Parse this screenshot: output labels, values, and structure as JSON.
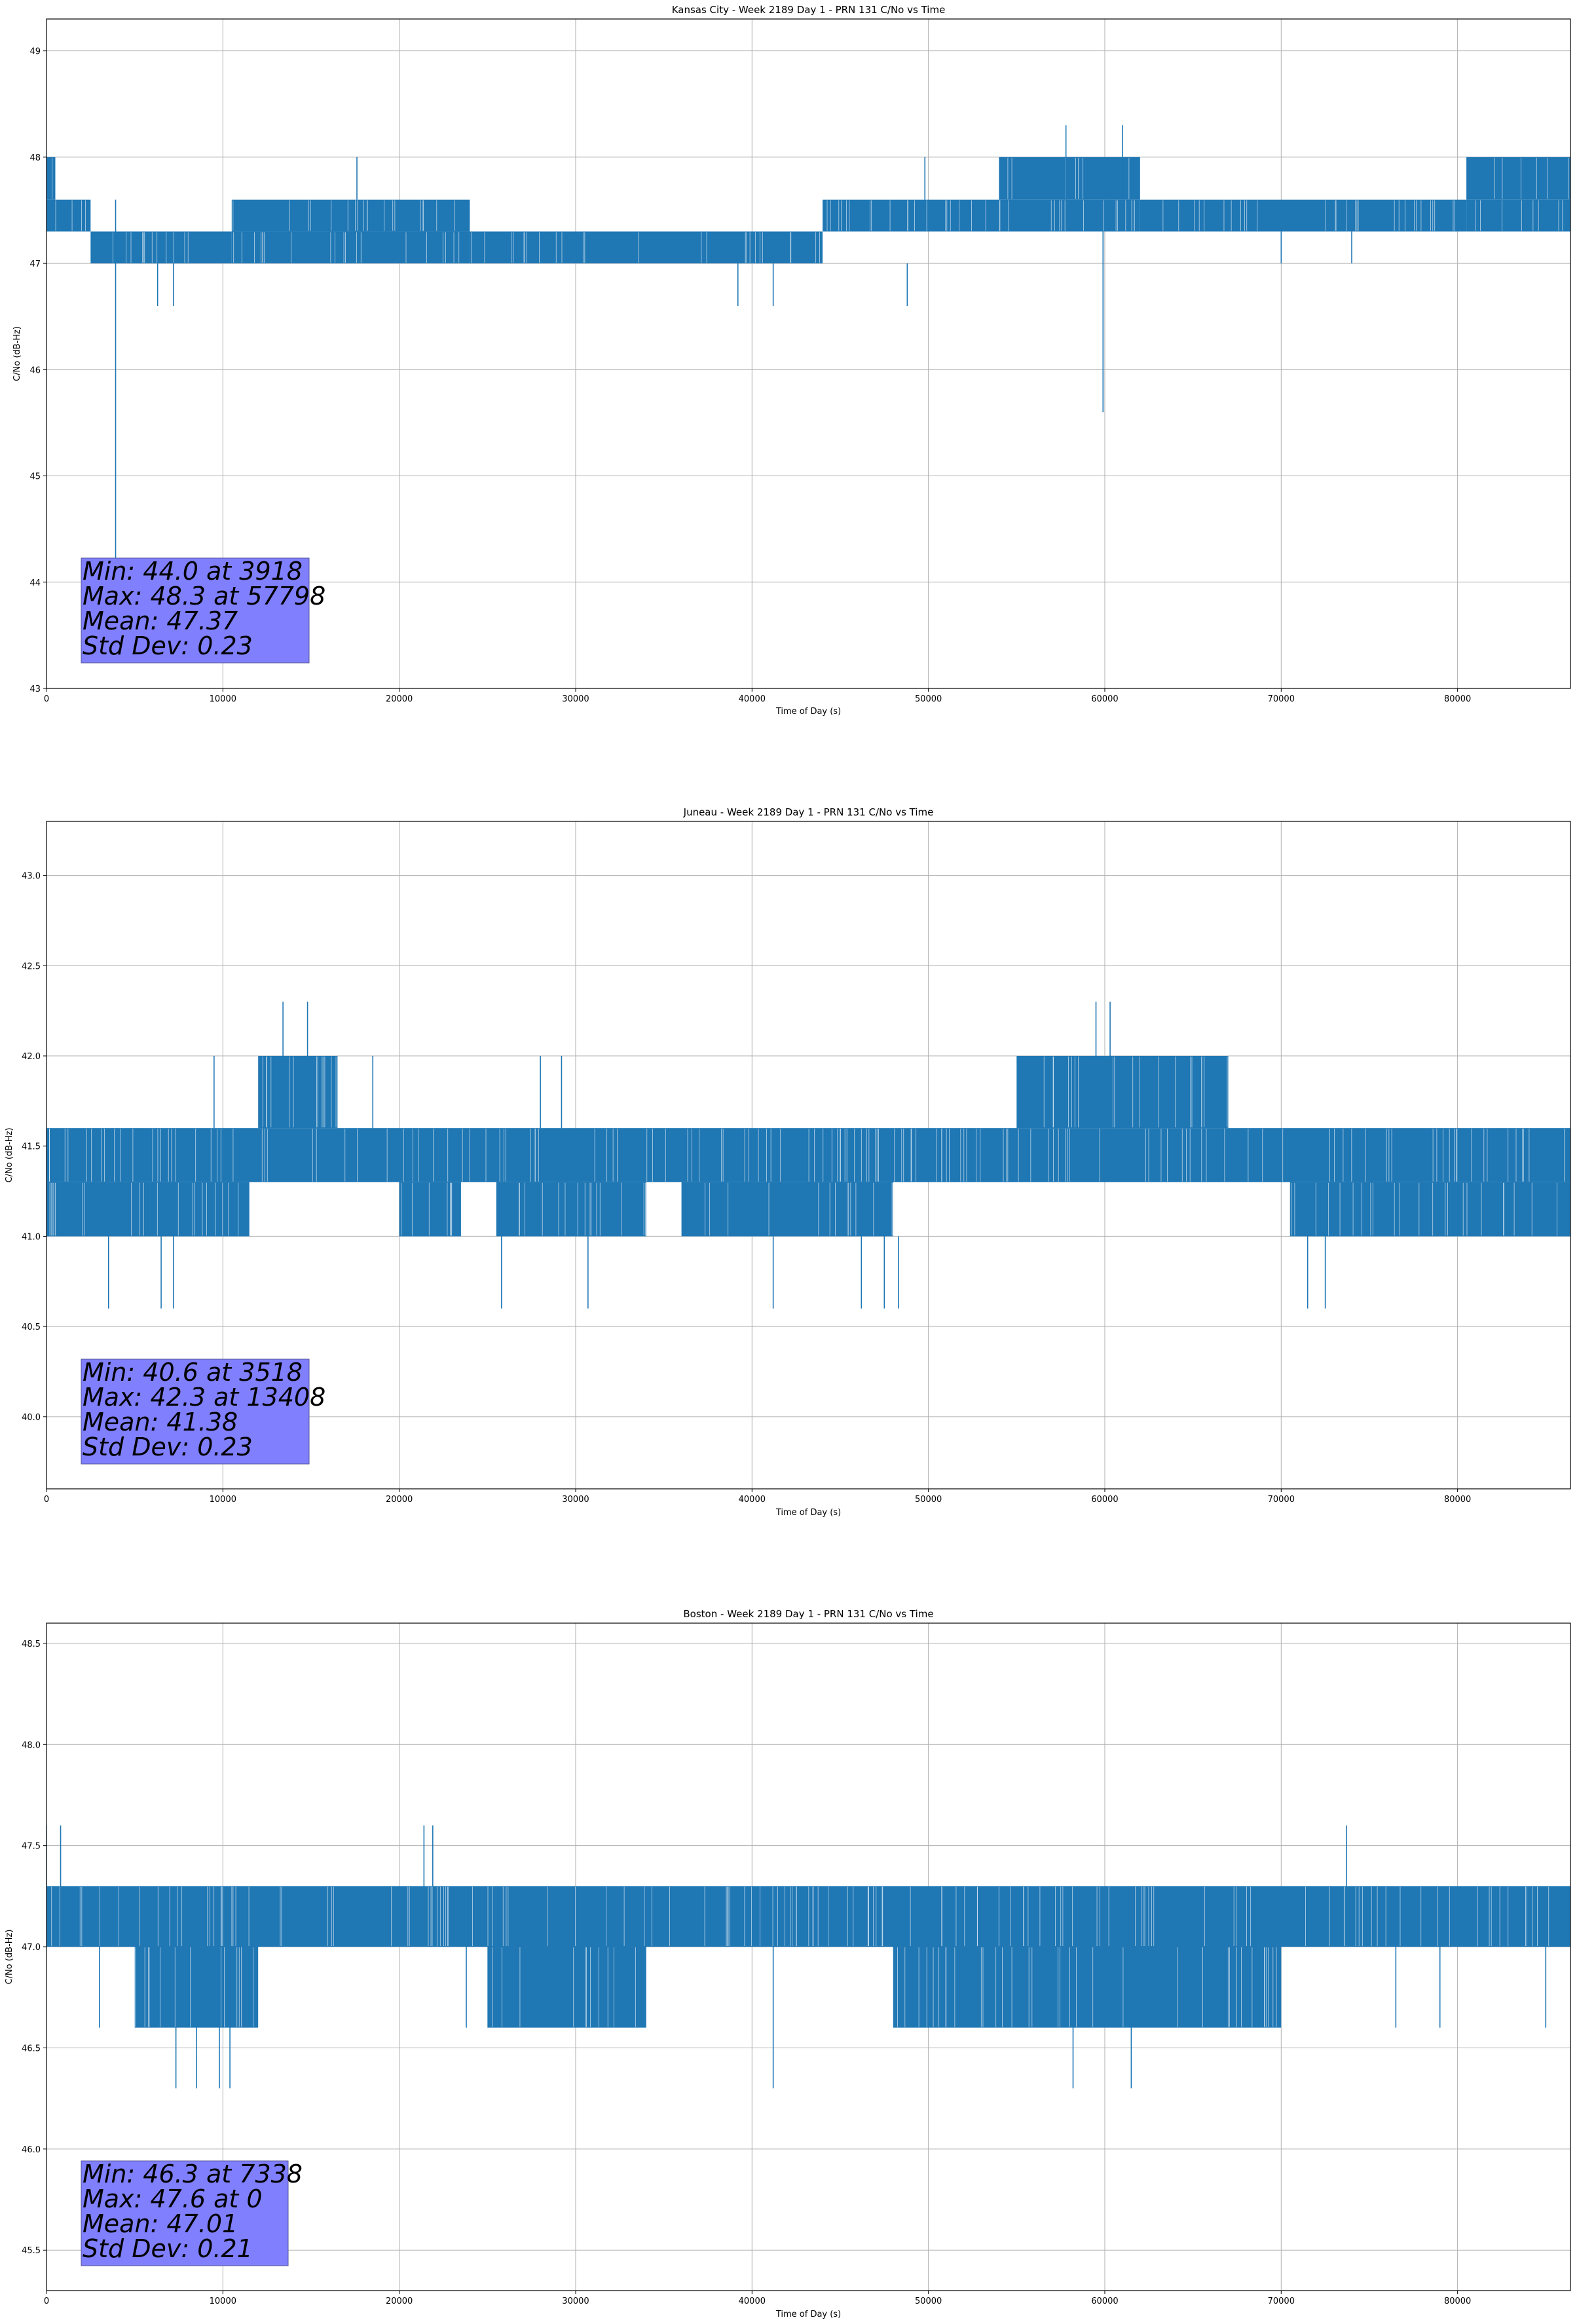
{
  "chart_data": [
    {
      "type": "line",
      "title": "Kansas City - Week 2189 Day 1 - PRN 131 C/No vs Time",
      "xlabel": "Time of Day (s)",
      "ylabel": "C/No (dB-Hz)",
      "xlim": [
        0,
        86400
      ],
      "ylim": [
        43,
        49.3
      ],
      "xticks": [
        0,
        10000,
        20000,
        30000,
        40000,
        50000,
        60000,
        70000,
        80000
      ],
      "yticks": [
        43,
        44,
        45,
        46,
        47,
        48,
        49
      ],
      "ytick_labels": [
        "43",
        "44",
        "45",
        "46",
        "47",
        "48",
        "49"
      ],
      "grid": true,
      "series": [
        {
          "name": "PRN 131 C/No",
          "color": "#1f77b4"
        }
      ],
      "bands": [
        {
          "x0": 0,
          "x1": 500,
          "lo": 47.6,
          "hi": 48.0
        },
        {
          "x0": 0,
          "x1": 2500,
          "lo": 47.3,
          "hi": 47.6
        },
        {
          "x0": 2500,
          "x1": 10500,
          "lo": 47.0,
          "hi": 47.3
        },
        {
          "x0": 10500,
          "x1": 24000,
          "lo": 47.3,
          "hi": 47.6
        },
        {
          "x0": 10500,
          "x1": 24000,
          "lo": 47.0,
          "hi": 47.3
        },
        {
          "x0": 24000,
          "x1": 44000,
          "lo": 47.0,
          "hi": 47.3
        },
        {
          "x0": 44000,
          "x1": 54000,
          "lo": 47.3,
          "hi": 47.6
        },
        {
          "x0": 54000,
          "x1": 62000,
          "lo": 47.6,
          "hi": 48.0
        },
        {
          "x0": 54000,
          "x1": 62000,
          "lo": 47.3,
          "hi": 47.6
        },
        {
          "x0": 62000,
          "x1": 80500,
          "lo": 47.3,
          "hi": 47.6
        },
        {
          "x0": 80500,
          "x1": 86400,
          "lo": 47.6,
          "hi": 48.0
        },
        {
          "x0": 80500,
          "x1": 86400,
          "lo": 47.3,
          "hi": 47.6
        }
      ],
      "spikes": [
        {
          "x": 3918,
          "lo": 44.0,
          "hi": 47.6
        },
        {
          "x": 6300,
          "lo": 46.6,
          "hi": 47.0
        },
        {
          "x": 7200,
          "lo": 46.6,
          "hi": 47.0
        },
        {
          "x": 17600,
          "lo": 47.6,
          "hi": 48.0
        },
        {
          "x": 39200,
          "lo": 46.6,
          "hi": 47.0
        },
        {
          "x": 41200,
          "lo": 46.6,
          "hi": 47.0
        },
        {
          "x": 48800,
          "lo": 46.6,
          "hi": 47.0
        },
        {
          "x": 49800,
          "lo": 47.6,
          "hi": 48.0
        },
        {
          "x": 57798,
          "lo": 47.6,
          "hi": 48.3
        },
        {
          "x": 59900,
          "lo": 45.6,
          "hi": 47.3
        },
        {
          "x": 61000,
          "lo": 47.6,
          "hi": 48.3
        },
        {
          "x": 70000,
          "lo": 47.0,
          "hi": 47.3
        },
        {
          "x": 74000,
          "lo": 47.0,
          "hi": 47.3
        }
      ],
      "stats": [
        "Min: 44.0 at 3918",
        "Max: 48.3 at 57798",
        "Mean: 47.37",
        "Std Dev: 0.23"
      ]
    },
    {
      "type": "line",
      "title": "Juneau - Week 2189 Day 1 - PRN 131 C/No vs Time",
      "xlabel": "Time of Day (s)",
      "ylabel": "C/No (dB-Hz)",
      "xlim": [
        0,
        86400
      ],
      "ylim": [
        39.6,
        43.3
      ],
      "xticks": [
        0,
        10000,
        20000,
        30000,
        40000,
        50000,
        60000,
        70000,
        80000
      ],
      "yticks": [
        40.0,
        40.5,
        41.0,
        41.5,
        42.0,
        42.5,
        43.0
      ],
      "ytick_labels": [
        "40.0",
        "40.5",
        "41.0",
        "41.5",
        "42.0",
        "42.5",
        "43.0"
      ],
      "grid": true,
      "series": [
        {
          "name": "PRN 131 C/No",
          "color": "#1f77b4"
        }
      ],
      "bands": [
        {
          "x0": 0,
          "x1": 86400,
          "lo": 41.3,
          "hi": 41.6
        },
        {
          "x0": 0,
          "x1": 11500,
          "lo": 41.0,
          "hi": 41.3
        },
        {
          "x0": 20000,
          "x1": 23500,
          "lo": 41.0,
          "hi": 41.3
        },
        {
          "x0": 25500,
          "x1": 34000,
          "lo": 41.0,
          "hi": 41.3
        },
        {
          "x0": 36000,
          "x1": 48000,
          "lo": 41.0,
          "hi": 41.3
        },
        {
          "x0": 70500,
          "x1": 86400,
          "lo": 41.0,
          "hi": 41.3
        },
        {
          "x0": 12000,
          "x1": 16500,
          "lo": 41.6,
          "hi": 42.0
        },
        {
          "x0": 55000,
          "x1": 67000,
          "lo": 41.6,
          "hi": 42.0
        }
      ],
      "spikes": [
        {
          "x": 3518,
          "lo": 40.6,
          "hi": 41.0
        },
        {
          "x": 6500,
          "lo": 40.6,
          "hi": 41.0
        },
        {
          "x": 7200,
          "lo": 40.6,
          "hi": 41.0
        },
        {
          "x": 9500,
          "lo": 41.6,
          "hi": 42.0
        },
        {
          "x": 13408,
          "lo": 42.0,
          "hi": 42.3
        },
        {
          "x": 14800,
          "lo": 42.0,
          "hi": 42.3
        },
        {
          "x": 18500,
          "lo": 41.6,
          "hi": 42.0
        },
        {
          "x": 25800,
          "lo": 40.6,
          "hi": 41.0
        },
        {
          "x": 28000,
          "lo": 41.6,
          "hi": 42.0
        },
        {
          "x": 29200,
          "lo": 41.6,
          "hi": 42.0
        },
        {
          "x": 30700,
          "lo": 40.6,
          "hi": 41.0
        },
        {
          "x": 41200,
          "lo": 40.6,
          "hi": 41.0
        },
        {
          "x": 46200,
          "lo": 40.6,
          "hi": 41.0
        },
        {
          "x": 47500,
          "lo": 40.6,
          "hi": 41.0
        },
        {
          "x": 48300,
          "lo": 40.6,
          "hi": 41.0
        },
        {
          "x": 59500,
          "lo": 42.0,
          "hi": 42.3
        },
        {
          "x": 60300,
          "lo": 42.0,
          "hi": 42.3
        },
        {
          "x": 71500,
          "lo": 40.6,
          "hi": 41.0
        },
        {
          "x": 72500,
          "lo": 40.6,
          "hi": 41.0
        }
      ],
      "stats": [
        "Min: 40.6 at 3518",
        "Max: 42.3 at 13408",
        "Mean: 41.38",
        "Std Dev: 0.23"
      ]
    },
    {
      "type": "line",
      "title": "Boston - Week 2189 Day 1 - PRN 131 C/No vs Time",
      "xlabel": "Time of Day (s)",
      "ylabel": "C/No (dB-Hz)",
      "xlim": [
        0,
        86400
      ],
      "ylim": [
        45.3,
        48.6
      ],
      "xticks": [
        0,
        10000,
        20000,
        30000,
        40000,
        50000,
        60000,
        70000,
        80000
      ],
      "yticks": [
        45.5,
        46.0,
        46.5,
        47.0,
        47.5,
        48.0,
        48.5
      ],
      "ytick_labels": [
        "45.5",
        "46.0",
        "46.5",
        "47.0",
        "47.5",
        "48.0",
        "48.5"
      ],
      "grid": true,
      "series": [
        {
          "name": "PRN 131 C/No",
          "color": "#1f77b4"
        }
      ],
      "bands": [
        {
          "x0": 0,
          "x1": 86400,
          "lo": 47.0,
          "hi": 47.3
        },
        {
          "x0": 5000,
          "x1": 12000,
          "lo": 46.6,
          "hi": 47.0
        },
        {
          "x0": 25000,
          "x1": 34000,
          "lo": 46.6,
          "hi": 47.0
        },
        {
          "x0": 48000,
          "x1": 70000,
          "lo": 46.6,
          "hi": 47.0
        }
      ],
      "spikes": [
        {
          "x": 0,
          "lo": 47.3,
          "hi": 47.6
        },
        {
          "x": 800,
          "lo": 47.3,
          "hi": 47.6
        },
        {
          "x": 3000,
          "lo": 46.6,
          "hi": 47.0
        },
        {
          "x": 7338,
          "lo": 46.3,
          "hi": 47.0
        },
        {
          "x": 8500,
          "lo": 46.3,
          "hi": 47.0
        },
        {
          "x": 9800,
          "lo": 46.3,
          "hi": 47.0
        },
        {
          "x": 10400,
          "lo": 46.3,
          "hi": 47.0
        },
        {
          "x": 21400,
          "lo": 47.3,
          "hi": 47.6
        },
        {
          "x": 21900,
          "lo": 47.3,
          "hi": 47.6
        },
        {
          "x": 23800,
          "lo": 46.6,
          "hi": 47.0
        },
        {
          "x": 41200,
          "lo": 46.3,
          "hi": 47.0
        },
        {
          "x": 58200,
          "lo": 46.3,
          "hi": 47.0
        },
        {
          "x": 61500,
          "lo": 46.3,
          "hi": 47.0
        },
        {
          "x": 73700,
          "lo": 47.3,
          "hi": 47.6
        },
        {
          "x": 76500,
          "lo": 46.6,
          "hi": 47.0
        },
        {
          "x": 79000,
          "lo": 46.6,
          "hi": 47.0
        },
        {
          "x": 85000,
          "lo": 46.6,
          "hi": 47.0
        }
      ],
      "stats": [
        "Min: 46.3 at 7338",
        "Max: 47.6 at 0",
        "Mean: 47.01",
        "Std Dev: 0.21"
      ]
    }
  ]
}
